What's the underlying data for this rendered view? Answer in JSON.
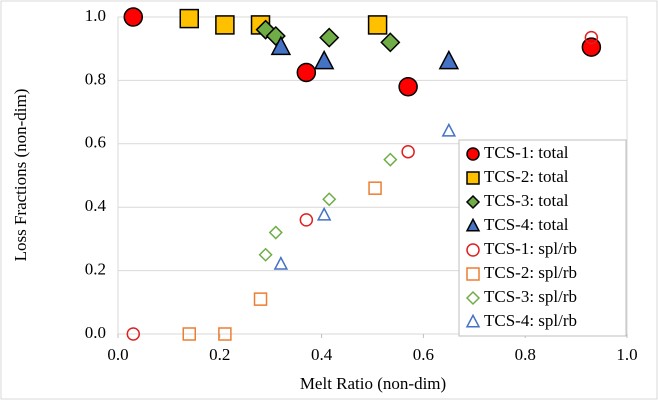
{
  "chart_data": {
    "type": "scatter",
    "xlabel": "Melt Ratio (non-dim)",
    "ylabel": "Loss Fractions (non-dim)",
    "xlim": [
      0,
      1
    ],
    "xticks": [
      {
        "value": 0,
        "label": "0.0"
      },
      0.2,
      0.4,
      0.6,
      0.8,
      {
        "value": 1,
        "label": "1.0"
      }
    ],
    "ylim": [
      0,
      1
    ],
    "yticks": [
      {
        "value": 0,
        "label": "0.0"
      },
      0.2,
      0.4,
      0.6,
      0.8,
      {
        "value": 1,
        "label": "1.0"
      }
    ],
    "grid": true,
    "legend": "right",
    "series": [
      {
        "name": "TCS-1: total",
        "color": "#ff0000",
        "marker": "circle",
        "filled": true,
        "x": [
          0.03,
          0.37,
          0.57,
          0.93
        ],
        "values": [
          1.0,
          0.825,
          0.78,
          0.905
        ]
      },
      {
        "name": "TCS-2: total",
        "color": "#ffc000",
        "marker": "square",
        "filled": true,
        "x": [
          0.14,
          0.21,
          0.28,
          0.51
        ],
        "values": [
          0.995,
          0.975,
          0.975,
          0.975
        ]
      },
      {
        "name": "TCS-3: total",
        "color": "#70ad47",
        "marker": "diamond",
        "filled": true,
        "x": [
          0.29,
          0.31,
          0.415,
          0.535
        ],
        "values": [
          0.96,
          0.94,
          0.935,
          0.92
        ]
      },
      {
        "name": "TCS-4: total",
        "color": "#4472c4",
        "marker": "triangle",
        "filled": true,
        "x": [
          0.32,
          0.405,
          0.65
        ],
        "values": [
          0.905,
          0.86,
          0.86
        ]
      },
      {
        "name": "TCS-1: spl/rb",
        "color": "#e02020",
        "marker": "circle",
        "filled": false,
        "x": [
          0.03,
          0.37,
          0.57,
          0.93
        ],
        "values": [
          0,
          0.36,
          0.575,
          0.935
        ]
      },
      {
        "name": "TCS-2: spl/rb",
        "color": "#ed7d31",
        "marker": "square",
        "filled": false,
        "x": [
          0.14,
          0.21,
          0.28,
          0.505
        ],
        "values": [
          0,
          0,
          0.11,
          0.46
        ]
      },
      {
        "name": "TCS-3: spl/rb",
        "color": "#70ad47",
        "marker": "diamond",
        "filled": false,
        "x": [
          0.29,
          0.31,
          0.415,
          0.535
        ],
        "values": [
          0.25,
          0.32,
          0.425,
          0.55
        ]
      },
      {
        "name": "TCS-4: spl/rb",
        "color": "#4472c4",
        "marker": "triangle",
        "filled": false,
        "x": [
          0.32,
          0.405,
          0.65
        ],
        "values": [
          0.22,
          0.375,
          0.64
        ]
      }
    ]
  }
}
